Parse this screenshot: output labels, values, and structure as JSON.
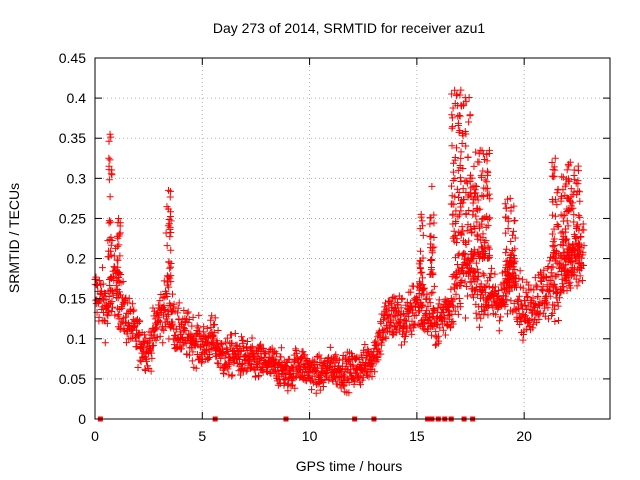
{
  "chart_data": {
    "type": "scatter",
    "title": "Day 273 of 2014, SRMTID for receiver azu1",
    "xlabel": "GPS time / hours",
    "ylabel": "SRMTID / TECUs",
    "xlim": [
      0,
      24
    ],
    "ylim": [
      0,
      0.45
    ],
    "xticks": [
      0,
      5,
      10,
      15,
      20
    ],
    "xtick_labels": [
      "0",
      "5",
      "10",
      "15",
      "20"
    ],
    "yticks": [
      0,
      0.05,
      0.1,
      0.15,
      0.2,
      0.25,
      0.3,
      0.35,
      0.4,
      0.45
    ],
    "ytick_labels": [
      "0",
      "0.05",
      "0.1",
      "0.15",
      "0.2",
      "0.25",
      "0.3",
      "0.35",
      "0.4",
      "0.45"
    ],
    "grid": true,
    "legend": "none",
    "series": [
      {
        "name": "SRMTID",
        "color": "#ff0000",
        "marker": "plus",
        "profile": {
          "x": [
            0,
            0.3,
            0.6,
            0.9,
            1.2,
            1.6,
            2.0,
            2.5,
            3.0,
            3.4,
            3.8,
            4.2,
            4.6,
            5.0,
            5.5,
            6.0,
            6.5,
            7.0,
            7.5,
            8.0,
            8.5,
            9.0,
            9.5,
            10.0,
            10.5,
            11.0,
            11.5,
            12.0,
            12.5,
            13.0,
            13.5,
            14.0,
            14.5,
            15.0,
            15.5,
            16.0,
            16.5,
            17.0,
            17.5,
            18.0,
            18.5,
            19.0,
            19.5,
            20.0,
            20.5,
            21.0,
            21.5,
            22.0,
            22.5,
            22.8
          ],
          "y": [
            0.155,
            0.15,
            0.135,
            0.175,
            0.14,
            0.12,
            0.1,
            0.085,
            0.13,
            0.14,
            0.11,
            0.105,
            0.1,
            0.09,
            0.1,
            0.075,
            0.08,
            0.075,
            0.07,
            0.07,
            0.065,
            0.055,
            0.07,
            0.06,
            0.055,
            0.065,
            0.06,
            0.06,
            0.065,
            0.08,
            0.12,
            0.13,
            0.12,
            0.145,
            0.13,
            0.12,
            0.14,
            0.18,
            0.18,
            0.16,
            0.15,
            0.15,
            0.18,
            0.13,
            0.15,
            0.16,
            0.17,
            0.18,
            0.2,
            0.2
          ]
        },
        "bursts": [
          {
            "x": [
              0.6,
              0.8
            ],
            "y": [
              0.2,
              0.355
            ]
          },
          {
            "x": [
              1.0,
              1.2
            ],
            "y": [
              0.17,
              0.25
            ]
          },
          {
            "x": [
              3.3,
              3.55
            ],
            "y": [
              0.17,
              0.285
            ]
          },
          {
            "x": [
              15.1,
              15.3
            ],
            "y": [
              0.16,
              0.255
            ]
          },
          {
            "x": [
              15.6,
              15.8
            ],
            "y": [
              0.18,
              0.29
            ]
          },
          {
            "x": [
              16.6,
              17.5
            ],
            "y": [
              0.22,
              0.41
            ]
          },
          {
            "x": [
              17.5,
              18.4
            ],
            "y": [
              0.2,
              0.335
            ]
          },
          {
            "x": [
              19.1,
              19.6
            ],
            "y": [
              0.17,
              0.275
            ]
          },
          {
            "x": [
              21.3,
              21.6
            ],
            "y": [
              0.2,
              0.325
            ]
          },
          {
            "x": [
              21.7,
              22.6
            ],
            "y": [
              0.2,
              0.32
            ]
          }
        ],
        "zero_flags_x": [
          0.25,
          5.6,
          8.9,
          12.1,
          13.0,
          15.5,
          15.7,
          16.0,
          16.3,
          16.6,
          17.2,
          17.6
        ]
      }
    ]
  }
}
